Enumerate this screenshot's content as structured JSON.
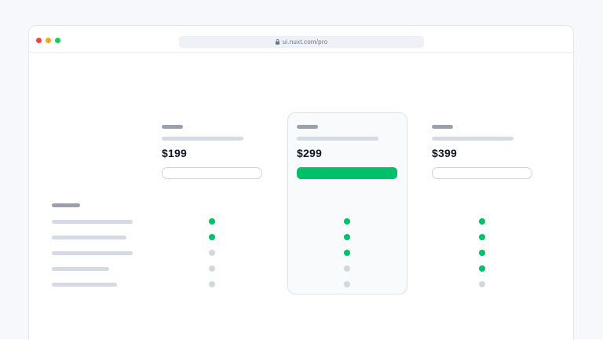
{
  "browser": {
    "url": "ui.nuxt.com/pro",
    "window_controls": [
      "close",
      "minimize",
      "zoom"
    ]
  },
  "pricing": {
    "plans": [
      {
        "price": "$199",
        "highlighted": false,
        "button_style": "outline",
        "features": [
          true,
          true,
          false,
          false,
          false
        ]
      },
      {
        "price": "$299",
        "highlighted": true,
        "button_style": "solid",
        "features": [
          true,
          true,
          true,
          false,
          false
        ]
      },
      {
        "price": "$399",
        "highlighted": false,
        "button_style": "outline",
        "features": [
          true,
          true,
          true,
          true,
          false
        ]
      }
    ],
    "feature_row_count": 5
  },
  "colors": {
    "accent-green": "#00c16a",
    "dot-muted": "#d3d8e0",
    "page-bg": "#f7f8fb",
    "window-bg": "#ffffff",
    "window-border": "#e4e8ee",
    "toolbar-divider": "#edeff4",
    "pill-bg": "#eef1f6",
    "url-text": "#6a7490",
    "skeleton-dark": "#9aa1ad",
    "skeleton-light": "#d6dbe3",
    "price-text": "#101726",
    "card-bg": "#f8fafc",
    "card-border": "#dee4ed",
    "button-border": "#ccd5e2",
    "tl-red": "#ef4444",
    "tl-yellow": "#f2a51d",
    "tl-green": "#17c964"
  }
}
